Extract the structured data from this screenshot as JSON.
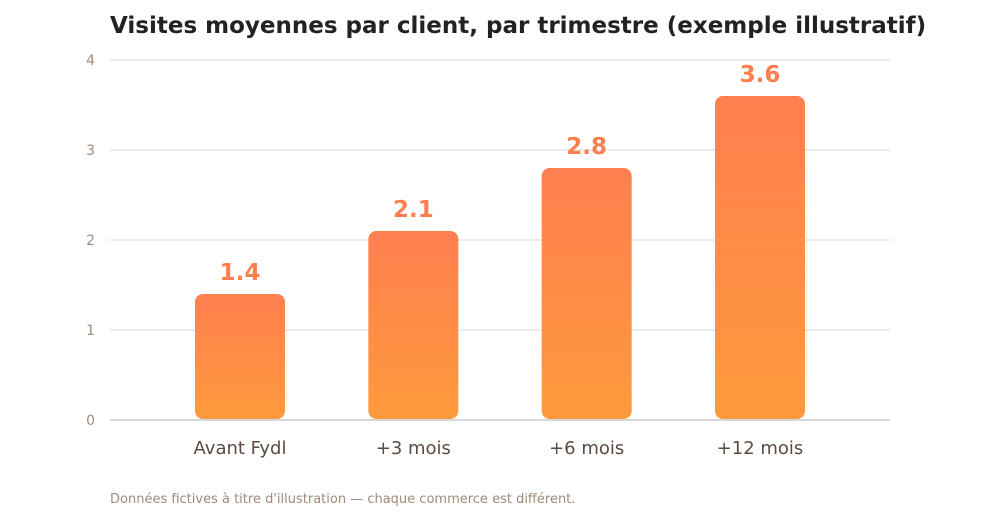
{
  "chart_data": {
    "type": "bar",
    "title": "Visites moyennes par client, par trimestre (exemple illustratif)",
    "xlabel": "",
    "ylabel": "",
    "categories": [
      "Avant Fydl",
      "+3 mois",
      "+6 mois",
      "+12 mois"
    ],
    "values": [
      1.4,
      2.1,
      2.8,
      3.6
    ],
    "value_labels": [
      "1.4",
      "2.1",
      "2.8",
      "3.6"
    ],
    "ylim": [
      0,
      4
    ],
    "yticks": [
      0,
      1,
      2,
      3,
      4
    ],
    "ytick_labels": [
      "0",
      "1",
      "2",
      "3",
      "4"
    ],
    "grid": true,
    "legend": "none",
    "colors": {
      "bar_top": "#ff7f50",
      "bar_bottom": "#ff9a3c",
      "value_label": "#ff7f4f",
      "grid": "#e6e6e6",
      "axis": "#cccccc",
      "tick_label": "#a08a7a",
      "category_label": "#5a4a42"
    }
  },
  "footnote": "Données fictives à titre d'illustration — chaque commerce est différent."
}
